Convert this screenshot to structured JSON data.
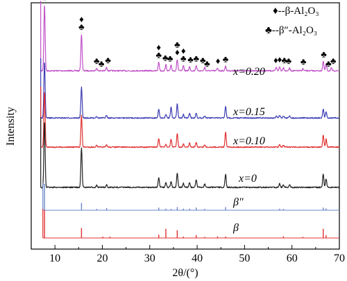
{
  "chart_data": {
    "type": "line",
    "xlabel": "2θ/(°)",
    "ylabel": "Intensity",
    "xlim": [
      5,
      70
    ],
    "xticks": [
      10,
      20,
      30,
      40,
      50,
      60,
      70
    ],
    "yticks_shown": false,
    "grid": false,
    "legend": {
      "placement": "top-right",
      "entries": [
        {
          "marker": "♦",
          "label": "β-Al₂O₃"
        },
        {
          "marker": "♣",
          "label": "β″-Al₂O₃"
        }
      ]
    },
    "series": [
      {
        "name": "x=0.20",
        "color": "#c050c8",
        "peaks": [
          [
            7.8,
            1.0
          ],
          [
            15.6,
            0.55
          ],
          [
            18.8,
            0.04
          ],
          [
            20.9,
            0.05
          ],
          [
            31.9,
            0.13
          ],
          [
            33.4,
            0.09
          ],
          [
            34.5,
            0.08
          ],
          [
            35.8,
            0.17
          ],
          [
            37.1,
            0.08
          ],
          [
            38.4,
            0.06
          ],
          [
            39.8,
            0.08
          ],
          [
            41.6,
            0.05
          ],
          [
            44.3,
            0.04
          ],
          [
            46.0,
            0.07
          ],
          [
            56.7,
            0.05
          ],
          [
            57.4,
            0.06
          ],
          [
            58.2,
            0.05
          ],
          [
            59.5,
            0.04
          ],
          [
            62.3,
            0.03
          ],
          [
            66.6,
            0.14
          ],
          [
            67.2,
            0.09
          ],
          [
            68.3,
            0.04
          ]
        ]
      },
      {
        "name": "x=0.15",
        "color": "#3c3cb4",
        "peaks": [
          [
            7.8,
            1.0
          ],
          [
            15.6,
            0.55
          ],
          [
            18.8,
            0.03
          ],
          [
            20.9,
            0.05
          ],
          [
            31.9,
            0.16
          ],
          [
            33.4,
            0.07
          ],
          [
            34.5,
            0.19
          ],
          [
            35.8,
            0.25
          ],
          [
            37.1,
            0.06
          ],
          [
            38.4,
            0.08
          ],
          [
            39.8,
            0.09
          ],
          [
            41.6,
            0.04
          ],
          [
            46.0,
            0.2
          ],
          [
            56.7,
            0.04
          ],
          [
            57.4,
            0.05
          ],
          [
            58.2,
            0.04
          ],
          [
            59.5,
            0.04
          ],
          [
            66.6,
            0.16
          ],
          [
            67.2,
            0.11
          ]
        ]
      },
      {
        "name": "x=0.10",
        "color": "#e03030",
        "peaks": [
          [
            7.8,
            0.97
          ],
          [
            15.6,
            0.55
          ],
          [
            18.8,
            0.03
          ],
          [
            20.9,
            0.04
          ],
          [
            31.9,
            0.15
          ],
          [
            33.4,
            0.05
          ],
          [
            34.5,
            0.14
          ],
          [
            35.8,
            0.24
          ],
          [
            37.1,
            0.05
          ],
          [
            38.4,
            0.07
          ],
          [
            39.8,
            0.08
          ],
          [
            41.6,
            0.04
          ],
          [
            46.0,
            0.27
          ],
          [
            57.4,
            0.04
          ],
          [
            58.2,
            0.03
          ],
          [
            66.6,
            0.22
          ],
          [
            67.2,
            0.14
          ]
        ]
      },
      {
        "name": "x=0",
        "color": "#202020",
        "peaks": [
          [
            7.8,
            1.0
          ],
          [
            15.6,
            0.6
          ],
          [
            18.8,
            0.03
          ],
          [
            20.9,
            0.04
          ],
          [
            31.9,
            0.14
          ],
          [
            33.4,
            0.07
          ],
          [
            34.5,
            0.09
          ],
          [
            35.8,
            0.22
          ],
          [
            37.1,
            0.06
          ],
          [
            38.4,
            0.07
          ],
          [
            39.8,
            0.12
          ],
          [
            41.6,
            0.05
          ],
          [
            46.0,
            0.2
          ],
          [
            57.4,
            0.06
          ],
          [
            58.2,
            0.04
          ],
          [
            59.5,
            0.04
          ],
          [
            66.6,
            0.2
          ],
          [
            67.2,
            0.13
          ]
        ]
      },
      {
        "name": "β″",
        "color": "#6a86c8",
        "stick": true,
        "peaks": [
          [
            7.8,
            1.0
          ],
          [
            15.6,
            0.28
          ],
          [
            18.8,
            0.05
          ],
          [
            20.9,
            0.08
          ],
          [
            31.9,
            0.1
          ],
          [
            33.4,
            0.06
          ],
          [
            34.5,
            0.05
          ],
          [
            35.8,
            0.12
          ],
          [
            37.1,
            0.06
          ],
          [
            38.4,
            0.06
          ],
          [
            39.8,
            0.1
          ],
          [
            41.6,
            0.05
          ],
          [
            46.0,
            0.12
          ],
          [
            57.4,
            0.06
          ],
          [
            58.2,
            0.05
          ],
          [
            66.6,
            0.1
          ],
          [
            67.2,
            0.07
          ]
        ]
      },
      {
        "name": "β",
        "color": "#e03030",
        "stick": true,
        "peaks": [
          [
            7.8,
            1.0
          ],
          [
            15.6,
            0.36
          ],
          [
            20.1,
            0.05
          ],
          [
            21.6,
            0.05
          ],
          [
            31.9,
            0.12
          ],
          [
            33.4,
            0.33
          ],
          [
            35.8,
            0.28
          ],
          [
            37.1,
            0.05
          ],
          [
            39.8,
            0.1
          ],
          [
            41.6,
            0.04
          ],
          [
            44.3,
            0.06
          ],
          [
            46.0,
            0.05
          ],
          [
            58.2,
            0.06
          ],
          [
            62.3,
            0.04
          ],
          [
            66.6,
            0.33
          ],
          [
            67.2,
            0.1
          ]
        ]
      }
    ],
    "peak_markers": [
      {
        "x": 7.8,
        "symbols": [
          "♣"
        ]
      },
      {
        "x": 15.6,
        "symbols": [
          "♦",
          "♣"
        ]
      },
      {
        "x": 18.8,
        "symbols": [
          "♣"
        ]
      },
      {
        "x": 19.8,
        "symbols": [
          "♣"
        ]
      },
      {
        "x": 21.2,
        "symbols": [
          "♣"
        ]
      },
      {
        "x": 31.9,
        "symbols": [
          "♦",
          "♣"
        ]
      },
      {
        "x": 33.3,
        "symbols": [
          "♣"
        ]
      },
      {
        "x": 34.3,
        "symbols": [
          "♣"
        ]
      },
      {
        "x": 35.8,
        "symbols": [
          "♣",
          "♦"
        ]
      },
      {
        "x": 37.1,
        "symbols": [
          "♦",
          "♣"
        ]
      },
      {
        "x": 38.6,
        "symbols": [
          "♣"
        ]
      },
      {
        "x": 39.8,
        "symbols": [
          "♣"
        ]
      },
      {
        "x": 41.2,
        "symbols": [
          "♣"
        ]
      },
      {
        "x": 42.1,
        "symbols": [
          "♣"
        ]
      },
      {
        "x": 44.4,
        "symbols": [
          "♦"
        ]
      },
      {
        "x": 46.0,
        "symbols": [
          "♣"
        ]
      },
      {
        "x": 56.6,
        "symbols": [
          "♦"
        ]
      },
      {
        "x": 57.4,
        "symbols": [
          "♦"
        ]
      },
      {
        "x": 58.4,
        "symbols": [
          "♣"
        ]
      },
      {
        "x": 59.3,
        "symbols": [
          "♣"
        ]
      },
      {
        "x": 62.4,
        "symbols": [
          "♣"
        ]
      },
      {
        "x": 66.7,
        "symbols": [
          "♣"
        ]
      },
      {
        "x": 67.7,
        "symbols": [
          "♣"
        ]
      },
      {
        "x": 68.7,
        "symbols": [
          "♣"
        ]
      }
    ]
  }
}
